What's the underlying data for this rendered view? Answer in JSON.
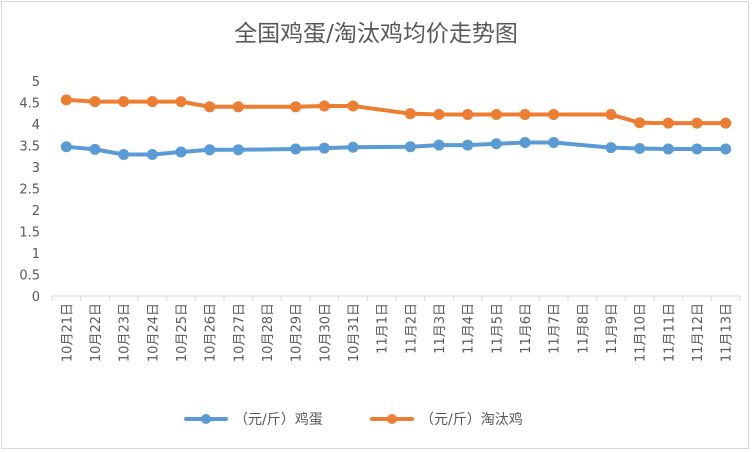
{
  "chart_data": {
    "type": "line",
    "title": "全国鸡蛋/淘汰鸡均价走势图",
    "xlabel": "",
    "ylabel": "",
    "ylim": [
      0,
      5
    ],
    "yticks": [
      "0",
      "0.5",
      "1",
      "1.5",
      "2",
      "2.5",
      "3",
      "3.5",
      "4",
      "4.5",
      "5"
    ],
    "categories": [
      "10月21日",
      "10月22日",
      "10月23日",
      "10月24日",
      "10月25日",
      "10月26日",
      "10月27日",
      "10月28日",
      "10月29日",
      "10月30日",
      "10月31日",
      "11月1日",
      "11月2日",
      "11月3日",
      "11月4日",
      "11月5日",
      "11月6日",
      "11月7日",
      "11月8日",
      "11月9日",
      "11月10日",
      "11月11日",
      "11月12日",
      "11月13日"
    ],
    "grid": "none",
    "legend_position": "bottom",
    "series": [
      {
        "name": "（元/斤）鸡蛋",
        "color": "#5b9bd5",
        "values": [
          3.47,
          3.41,
          3.29,
          3.29,
          3.35,
          3.4,
          3.4,
          null,
          3.42,
          3.44,
          3.46,
          null,
          3.47,
          3.51,
          3.51,
          3.54,
          3.57,
          3.57,
          null,
          3.45,
          3.43,
          3.42,
          3.42,
          3.42
        ]
      },
      {
        "name": "（元/斤）淘汰鸡",
        "color": "#ed7d31",
        "values": [
          4.56,
          4.52,
          4.52,
          4.52,
          4.52,
          4.4,
          4.4,
          null,
          4.4,
          4.42,
          4.42,
          null,
          4.24,
          4.22,
          4.22,
          4.22,
          4.22,
          4.22,
          null,
          4.22,
          4.03,
          4.02,
          4.02,
          4.02
        ]
      }
    ]
  }
}
